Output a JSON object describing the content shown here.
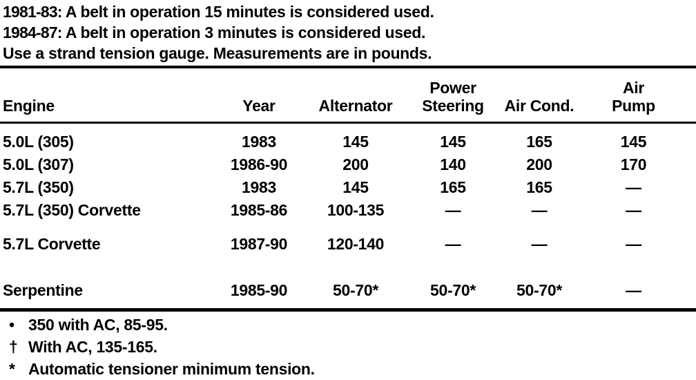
{
  "colors": {
    "ink": "#000000",
    "paper": "#ffffff"
  },
  "intro": {
    "lines": [
      {
        "label": "1981-83:",
        "text": " A belt in operation 15  minutes is considered used."
      },
      {
        "label": "1984-87:",
        "text": " A belt in operation 3 minutes is considered used."
      },
      {
        "label": "",
        "text": "Use a strand tension gauge. Measurements are in pounds."
      }
    ]
  },
  "table": {
    "columns": [
      {
        "id": "engine",
        "label_top": "",
        "label": "Engine"
      },
      {
        "id": "year",
        "label_top": "",
        "label": "Year"
      },
      {
        "id": "alternator",
        "label_top": "",
        "label": "Alternator"
      },
      {
        "id": "power_steering",
        "label_top": "Power",
        "label": "Steering"
      },
      {
        "id": "air_cond",
        "label_top": "",
        "label": "Air Cond."
      },
      {
        "id": "air_pump",
        "label_top": "Air",
        "label": "Pump"
      }
    ],
    "rows": [
      {
        "engine": "5.0L (305)",
        "year": "1983",
        "alternator": "145",
        "power_steering": "145",
        "air_cond": "165",
        "air_pump": "145"
      },
      {
        "engine": "5.0L (307)",
        "year": "1986-90",
        "alternator": "200",
        "power_steering": "140",
        "air_cond": "200",
        "air_pump": "170"
      },
      {
        "engine": "5.7L (350)",
        "year": "1983",
        "alternator": "145",
        "power_steering": "165",
        "air_cond": "165",
        "air_pump": "—"
      },
      {
        "engine": "5.7L (350) Corvette",
        "year": "1985-86",
        "alternator": "100-135",
        "power_steering": "—",
        "air_cond": "—",
        "air_pump": "—"
      },
      {
        "engine": "5.7L Corvette",
        "year": "1987-90",
        "alternator": "120-140",
        "power_steering": "—",
        "air_cond": "—",
        "air_pump": "—"
      },
      {
        "engine": "Serpentine",
        "year": "1985-90",
        "alternator": "50-70*",
        "power_steering": "50-70*",
        "air_cond": "50-70*",
        "air_pump": "—"
      }
    ]
  },
  "footnotes": [
    {
      "marker": "•",
      "text": "350 with AC, 85-95."
    },
    {
      "marker": "†",
      "text": "With AC, 135-165."
    },
    {
      "marker": "*",
      "text": "Automatic tensioner minimum tension."
    }
  ]
}
